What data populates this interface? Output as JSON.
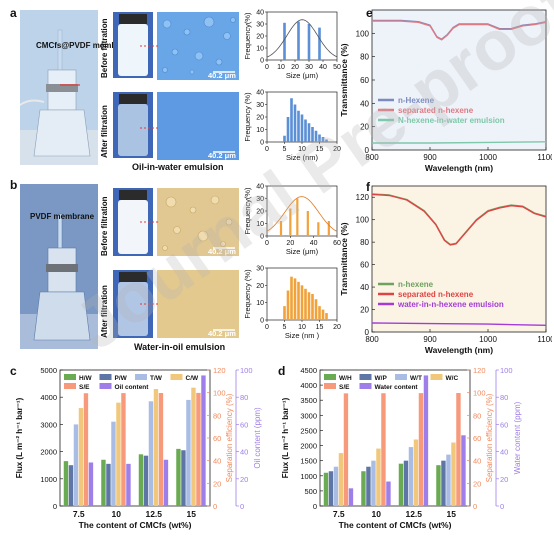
{
  "panels": {
    "a": {
      "letter": "a",
      "membrane_label": "CMCfs@PVDF membrane",
      "before": "Before filtration",
      "after": "After filtration",
      "scale": "40.2 μm",
      "emulsion": "Oil-in-water emulsion",
      "colors": {
        "sky": "#bcd3ea",
        "water": "#ddeaf6",
        "micro_bg": "#69a6e8",
        "droplet": "#8fc1f3"
      }
    },
    "b": {
      "letter": "b",
      "membrane_label": "PVDF membrane",
      "before": "Before filtration",
      "after": "After filtration",
      "scale": "40.2 μm",
      "emulsion": "Water-in-oil emulsion",
      "colors": {
        "sky": "#7a98c3",
        "water": "#e8eef6",
        "micro_bg": "#e1c791",
        "droplet": "#f0dcae"
      }
    },
    "c": {
      "letter": "c"
    },
    "d": {
      "letter": "d"
    },
    "e": {
      "letter": "e"
    },
    "f": {
      "letter": "f"
    }
  },
  "chart_data": [
    {
      "id": "a-top",
      "type": "bar",
      "xlabel": "Size (μm)",
      "ylabel": "Frequency(%)",
      "xlim": [
        0,
        50
      ],
      "ylim": [
        0,
        40
      ],
      "xticks": [
        0,
        10,
        20,
        30,
        40,
        50
      ],
      "yticks": [
        0,
        10,
        20,
        30,
        40
      ],
      "x": [
        12.5,
        22.5,
        30,
        37.5
      ],
      "values": [
        31,
        32,
        30,
        27
      ],
      "fit": true,
      "color": "#5b8fd6"
    },
    {
      "id": "a-bottom",
      "type": "bar",
      "xlabel": "Size (nm)",
      "ylabel": "Frequency (%)",
      "xlim": [
        0,
        20
      ],
      "ylim": [
        0,
        40
      ],
      "xticks": [
        0,
        5,
        10,
        15,
        20
      ],
      "yticks": [
        0,
        10,
        20,
        30,
        40
      ],
      "x": [
        5,
        6,
        7,
        8,
        9,
        10,
        11,
        12,
        13,
        14,
        15,
        16,
        17
      ],
      "values": [
        5,
        20,
        35,
        30,
        25,
        22,
        18,
        15,
        12,
        9,
        6,
        4,
        2
      ],
      "fit": false,
      "color": "#5b8fd6"
    },
    {
      "id": "b-top",
      "type": "bar",
      "xlabel": "Size (μm)",
      "ylabel": "Frequency(%)",
      "xlim": [
        0,
        60
      ],
      "ylim": [
        0,
        40
      ],
      "xticks": [
        0,
        20,
        40,
        60
      ],
      "yticks": [
        0,
        10,
        20,
        30,
        40
      ],
      "x": [
        12,
        20,
        26,
        35,
        44,
        53
      ],
      "values": [
        12,
        22,
        30,
        20,
        11,
        12
      ],
      "fit": true,
      "color": "#f2a23a"
    },
    {
      "id": "b-bottom",
      "type": "bar",
      "xlabel": "Size (nm )",
      "ylabel": "Frequency (%)",
      "xlim": [
        0,
        20
      ],
      "ylim": [
        0,
        30
      ],
      "xticks": [
        0,
        5,
        10,
        15,
        20
      ],
      "yticks": [
        0,
        10,
        20,
        30
      ],
      "x": [
        5,
        6,
        7,
        8,
        9,
        10,
        11,
        12,
        13,
        14,
        15,
        16,
        17
      ],
      "values": [
        8,
        17,
        25,
        24,
        22,
        20,
        18,
        16,
        15,
        12,
        8,
        6,
        4
      ],
      "fit": false,
      "color": "#f2a23a"
    },
    {
      "id": "e",
      "type": "line",
      "xlabel": "Wavelength (nm)",
      "ylabel": "Transmittance (%)",
      "xlim": [
        800,
        1100
      ],
      "ylim": [
        0,
        120
      ],
      "xticks": [
        800,
        900,
        1000,
        1100
      ],
      "yticks": [
        0,
        20,
        40,
        60,
        80,
        100
      ],
      "background": "#eef2f9",
      "series": [
        {
          "name": "n-Hexene",
          "color": "#7b8bbf",
          "points": [
            [
              800,
              111
            ],
            [
              850,
              111
            ],
            [
              880,
              110
            ],
            [
              900,
              107
            ],
            [
              912,
              97
            ],
            [
              920,
              95
            ],
            [
              930,
              99
            ],
            [
              940,
              105
            ],
            [
              950,
              108
            ],
            [
              970,
              108
            ],
            [
              1000,
              108
            ],
            [
              1020,
              104
            ],
            [
              1040,
              104
            ],
            [
              1060,
              107
            ],
            [
              1080,
              108
            ],
            [
              1100,
              110
            ]
          ]
        },
        {
          "name": "separated n-hexene",
          "color": "#e07a82",
          "points": [
            [
              800,
              110.5
            ],
            [
              850,
              110.5
            ],
            [
              880,
              109.5
            ],
            [
              900,
              106.5
            ],
            [
              912,
              96.5
            ],
            [
              920,
              94.5
            ],
            [
              930,
              98.5
            ],
            [
              940,
              104.5
            ],
            [
              950,
              107.5
            ],
            [
              970,
              107.5
            ],
            [
              1000,
              107.5
            ],
            [
              1020,
              103.5
            ],
            [
              1040,
              103.5
            ],
            [
              1060,
              106.5
            ],
            [
              1080,
              107.5
            ],
            [
              1100,
              109.5
            ]
          ]
        },
        {
          "name": "N-hexene-in-water emulsion",
          "color": "#7fc8a9",
          "points": [
            [
              800,
              6
            ],
            [
              900,
              6
            ],
            [
              1000,
              6.5
            ],
            [
              1100,
              7
            ]
          ]
        }
      ]
    },
    {
      "id": "f",
      "type": "line",
      "xlabel": "Wavelength (nm)",
      "ylabel": "Transmittance (%)",
      "xlim": [
        800,
        1100
      ],
      "ylim": [
        0,
        130
      ],
      "xticks": [
        800,
        900,
        1000,
        1100
      ],
      "yticks": [
        0,
        20,
        40,
        60,
        80,
        100,
        120
      ],
      "background": "#fbf3e4",
      "series": [
        {
          "name": "n-hexene",
          "color": "#6fa160",
          "points": [
            [
              800,
              123
            ],
            [
              830,
              122
            ],
            [
              860,
              118
            ],
            [
              890,
              108
            ],
            [
              910,
              96
            ],
            [
              925,
              82
            ],
            [
              935,
              78
            ],
            [
              945,
              79
            ],
            [
              960,
              88
            ],
            [
              980,
              100
            ],
            [
              1000,
              108
            ],
            [
              1020,
              111
            ],
            [
              1040,
              113
            ],
            [
              1060,
              112
            ],
            [
              1080,
              106
            ],
            [
              1100,
              103
            ]
          ]
        },
        {
          "name": "separated n-hexene",
          "color": "#e04343",
          "points": [
            [
              800,
              122.5
            ],
            [
              830,
              121.5
            ],
            [
              860,
              117.5
            ],
            [
              890,
              107.5
            ],
            [
              910,
              95.5
            ],
            [
              925,
              81.5
            ],
            [
              935,
              77.5
            ],
            [
              945,
              78.5
            ],
            [
              960,
              87.5
            ],
            [
              980,
              99.5
            ],
            [
              1000,
              107.5
            ],
            [
              1020,
              110.5
            ],
            [
              1040,
              112.5
            ],
            [
              1060,
              111.5
            ],
            [
              1080,
              105.5
            ],
            [
              1100,
              102.5
            ]
          ]
        },
        {
          "name": "water-in-n-hexene emulsion",
          "color": "#a33bd9",
          "points": [
            [
              800,
              8
            ],
            [
              900,
              7.5
            ],
            [
              1000,
              7
            ],
            [
              1100,
              6
            ]
          ]
        }
      ]
    },
    {
      "id": "c",
      "type": "bar",
      "xlabel": "The content of CMCfs (wt%)",
      "ylabel": "Flux (L m⁻² h⁻¹ bar⁻¹)",
      "y2label": "Separation efficiency (%)",
      "y3label": "Oil content (ppm)",
      "categories": [
        "7.5",
        "10",
        "12.5",
        "15"
      ],
      "ylim": [
        0,
        5000
      ],
      "yticks": [
        0,
        1000,
        2000,
        3000,
        4000,
        5000
      ],
      "y2lim": [
        0,
        120
      ],
      "y2ticks": [
        0,
        20,
        40,
        60,
        80,
        100,
        120
      ],
      "y3lim": [
        0,
        100
      ],
      "y3ticks": [
        0,
        20,
        40,
        60,
        80,
        100
      ],
      "series": [
        {
          "name": "H/W",
          "color": "#6aaa52",
          "axis": "y",
          "values": [
            1650,
            1700,
            1900,
            2100
          ]
        },
        {
          "name": "P/W",
          "color": "#5d76a6",
          "axis": "y",
          "values": [
            1500,
            1550,
            1850,
            2050
          ]
        },
        {
          "name": "T/W",
          "color": "#a9bde4",
          "axis": "y",
          "values": [
            3000,
            3100,
            3850,
            3900
          ]
        },
        {
          "name": "C/W",
          "color": "#f0c77b",
          "axis": "y",
          "values": [
            3600,
            3800,
            4300,
            4350
          ]
        },
        {
          "name": "S/E",
          "color": "#f79a7c",
          "axis": "y2",
          "values": [
            99.5,
            99.6,
            99.7,
            99.8
          ]
        },
        {
          "name": "Oil content",
          "color": "#9e7ee8",
          "axis": "y3",
          "values": [
            32,
            31,
            34,
            96
          ]
        }
      ]
    },
    {
      "id": "d",
      "type": "bar",
      "xlabel": "The content of CMCfs (wt%)",
      "ylabel": "Flux (L m⁻² h⁻¹ bar⁻¹)",
      "y2label": "Separation efficiency (%)",
      "y3label": "Water content (ppm)",
      "categories": [
        "7.5",
        "10",
        "12.5",
        "15"
      ],
      "ylim": [
        0,
        4500
      ],
      "yticks": [
        0,
        500,
        1000,
        1500,
        2000,
        2500,
        3000,
        3500,
        4000,
        4500
      ],
      "y2lim": [
        0,
        120
      ],
      "y2ticks": [
        0,
        20,
        40,
        60,
        80,
        100,
        120
      ],
      "y3lim": [
        0,
        100
      ],
      "y3ticks": [
        0,
        20,
        40,
        60,
        80,
        100
      ],
      "series": [
        {
          "name": "W/H",
          "color": "#6aaa52",
          "axis": "y",
          "values": [
            1100,
            1150,
            1400,
            1350
          ]
        },
        {
          "name": "W/P",
          "color": "#5d76a6",
          "axis": "y",
          "values": [
            1150,
            1300,
            1500,
            1500
          ]
        },
        {
          "name": "W/T",
          "color": "#a9bde4",
          "axis": "y",
          "values": [
            1300,
            1500,
            1950,
            1700
          ]
        },
        {
          "name": "W/C",
          "color": "#f0c77b",
          "axis": "y",
          "values": [
            1750,
            1900,
            2200,
            2100
          ]
        },
        {
          "name": "S/E",
          "color": "#f79a7c",
          "axis": "y2",
          "values": [
            99.4,
            99.5,
            99.6,
            99.7
          ]
        },
        {
          "name": "Water content",
          "color": "#9e7ee8",
          "axis": "y3",
          "values": [
            13,
            18,
            96,
            52
          ]
        }
      ]
    }
  ]
}
